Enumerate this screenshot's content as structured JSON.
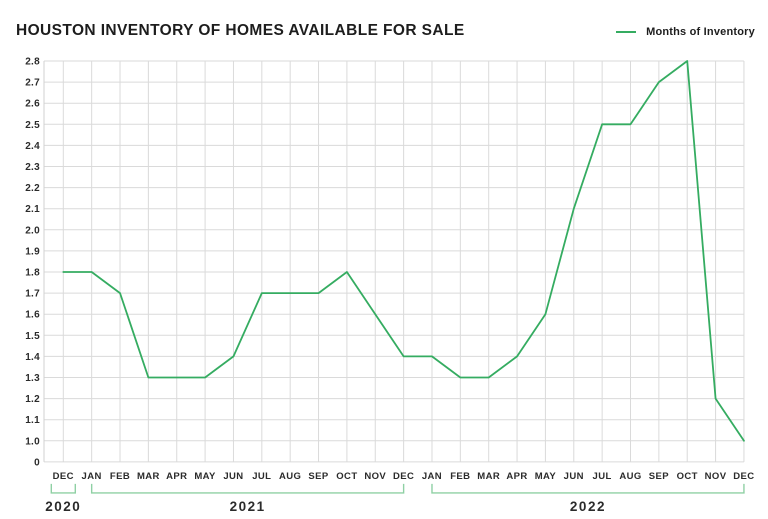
{
  "header": {
    "title": "HOUSTON INVENTORY OF HOMES AVAILABLE FOR SALE",
    "legend": {
      "label": "Months of Inventory"
    }
  },
  "colors": {
    "line": "#35ac61",
    "bracket": "#8fd0a4",
    "grid": "#dadada",
    "axis": "#d2d2d2",
    "title_text": "#1d1d1d",
    "tick_text": "#2b2b2b",
    "year_text": "#2b2b2b"
  },
  "chart_data": {
    "type": "line",
    "title": "HOUSTON INVENTORY OF HOMES AVAILABLE FOR SALE",
    "grid": true,
    "legend_position": "top-right",
    "ylim": [
      1.0,
      2.8
    ],
    "y_ticks": [
      "2.8",
      "2.7",
      "2.6",
      "2.5",
      "2.4",
      "2.3",
      "2.2",
      "2.1",
      "2.0",
      "1.9",
      "1.8",
      "1.7",
      "1.6",
      "1.5",
      "1.4",
      "1.3",
      "1.2",
      "1.1",
      "1.0",
      "0"
    ],
    "categories": [
      "DEC",
      "JAN",
      "FEB",
      "MAR",
      "APR",
      "MAY",
      "JUN",
      "JUL",
      "AUG",
      "SEP",
      "OCT",
      "NOV",
      "DEC",
      "JAN",
      "FEB",
      "MAR",
      "APR",
      "MAY",
      "JUN",
      "JUL",
      "AUG",
      "SEP",
      "OCT",
      "NOV",
      "DEC"
    ],
    "year_groups": [
      {
        "label": "2020",
        "from": 0,
        "to": 0
      },
      {
        "label": "2021",
        "from": 1,
        "to": 12
      },
      {
        "label": "2022",
        "from": 13,
        "to": 24
      }
    ],
    "series": [
      {
        "name": "Months of Inventory",
        "values": [
          1.8,
          1.8,
          1.7,
          1.3,
          1.3,
          1.3,
          1.4,
          1.7,
          1.7,
          1.7,
          1.8,
          1.6,
          1.4,
          1.4,
          1.3,
          1.3,
          1.4,
          1.6,
          2.1,
          2.5,
          2.5,
          2.7,
          2.8,
          1.2,
          1.0
        ]
      }
    ]
  }
}
